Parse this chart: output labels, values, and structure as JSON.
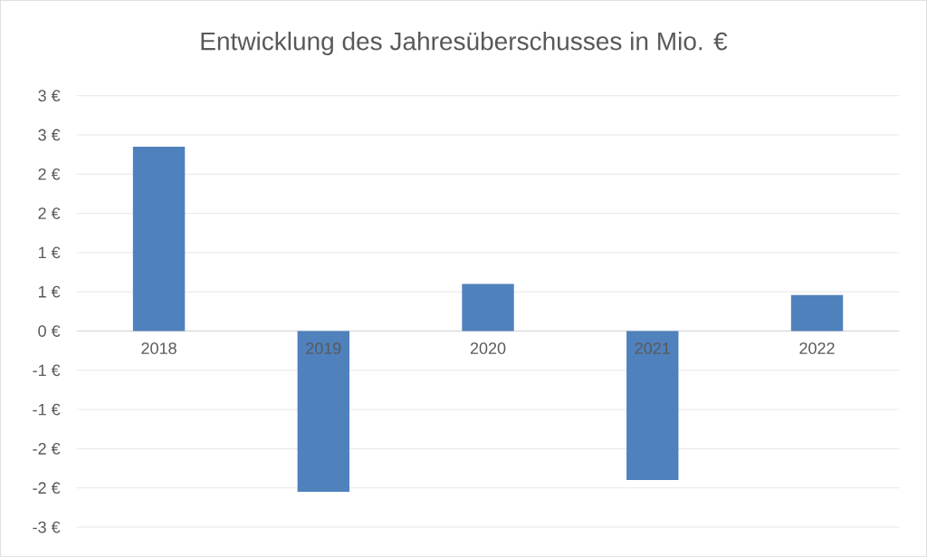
{
  "chart_data": {
    "type": "bar",
    "title": "Entwicklung des Jahresüberschusses in Mio. €",
    "categories": [
      "2018",
      "2019",
      "2020",
      "2021",
      "2022"
    ],
    "values": [
      2.35,
      -2.05,
      0.6,
      -1.9,
      0.46
    ],
    "color": "#4f81bd",
    "ylim": [
      -2.5,
      3.0
    ],
    "yticks": [
      {
        "value": -2.5,
        "label": "-3 €"
      },
      {
        "value": -2.0,
        "label": "-2 €"
      },
      {
        "value": -1.5,
        "label": "-2 €"
      },
      {
        "value": -1.0,
        "label": "-1 €"
      },
      {
        "value": -0.5,
        "label": "-1 €"
      },
      {
        "value": 0,
        "label": "0 €"
      },
      {
        "value": 0.5,
        "label": "1 €"
      },
      {
        "value": 1.0,
        "label": "1 €"
      },
      {
        "value": 1.5,
        "label": "2 €"
      },
      {
        "value": 2.0,
        "label": "2 €"
      },
      {
        "value": 2.5,
        "label": "3 €"
      },
      {
        "value": 3.0,
        "label": "3 €"
      }
    ],
    "grid": "y"
  }
}
